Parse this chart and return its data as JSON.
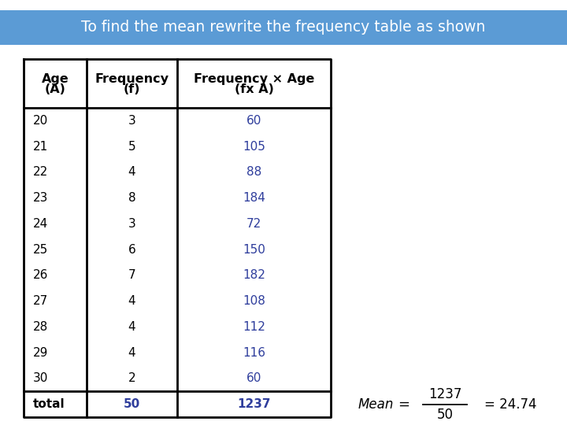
{
  "title": "To find the mean rewrite the frequency table as shown",
  "title_bg": "#5b9bd5",
  "title_text_color": "#ffffff",
  "ages": [
    20,
    21,
    22,
    23,
    24,
    25,
    26,
    27,
    28,
    29,
    30,
    "total"
  ],
  "frequencies": [
    3,
    5,
    4,
    8,
    3,
    6,
    7,
    4,
    4,
    4,
    2,
    50
  ],
  "fx_ages": [
    60,
    105,
    88,
    184,
    72,
    150,
    182,
    108,
    112,
    116,
    60,
    1237
  ],
  "col1_color": "#000000",
  "col2_color": "#000000",
  "col3_color": "#2e3d9c",
  "total_color": "#2e3d9c",
  "table_border_color": "#000000",
  "bg_color": "#ffffff",
  "mean_numerator": "1237",
  "mean_denominator": "50",
  "mean_result": "= 24.74"
}
